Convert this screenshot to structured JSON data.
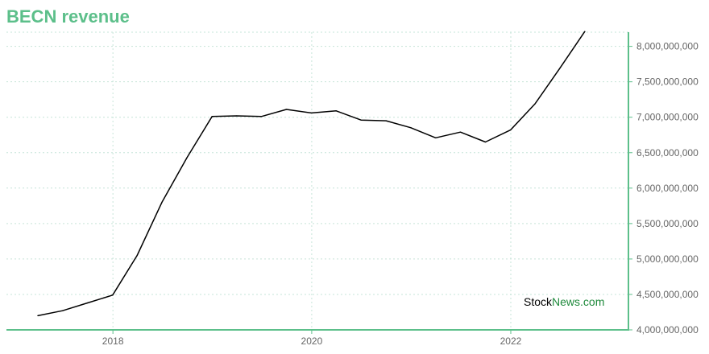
{
  "chart_data": {
    "type": "line",
    "title": "BECN revenue",
    "xlabel": "",
    "ylabel": "",
    "x_ticks": [
      "2018",
      "2020",
      "2022"
    ],
    "y_ticks": [
      "4,000,000,000",
      "4,500,000,000",
      "5,000,000,000",
      "5,500,000,000",
      "6,000,000,000",
      "6,500,000,000",
      "7,000,000,000",
      "7,500,000,000",
      "8,000,000,000"
    ],
    "xlim": [
      "2016-12-06",
      "2023-03-09"
    ],
    "ylim": [
      4000000000,
      8200000000
    ],
    "grid": true,
    "y_axis_position": "right",
    "series": [
      {
        "color": "#000000",
        "points": [
          {
            "x": "2017-03-31",
            "y": 4200000000
          },
          {
            "x": "2017-06-30",
            "y": 4270000000
          },
          {
            "x": "2017-09-30",
            "y": 4380000000
          },
          {
            "x": "2017-12-31",
            "y": 4490000000
          },
          {
            "x": "2018-03-31",
            "y": 5050000000
          },
          {
            "x": "2018-06-30",
            "y": 5800000000
          },
          {
            "x": "2018-09-30",
            "y": 6430000000
          },
          {
            "x": "2018-12-31",
            "y": 7010000000
          },
          {
            "x": "2019-03-31",
            "y": 7020000000
          },
          {
            "x": "2019-06-30",
            "y": 7010000000
          },
          {
            "x": "2019-09-30",
            "y": 7110000000
          },
          {
            "x": "2019-12-31",
            "y": 7060000000
          },
          {
            "x": "2020-03-31",
            "y": 7090000000
          },
          {
            "x": "2020-06-30",
            "y": 6960000000
          },
          {
            "x": "2020-09-30",
            "y": 6950000000
          },
          {
            "x": "2020-12-31",
            "y": 6850000000
          },
          {
            "x": "2021-03-31",
            "y": 6710000000
          },
          {
            "x": "2021-06-30",
            "y": 6790000000
          },
          {
            "x": "2021-09-30",
            "y": 6650000000
          },
          {
            "x": "2021-12-31",
            "y": 6820000000
          },
          {
            "x": "2022-03-31",
            "y": 7190000000
          },
          {
            "x": "2022-06-30",
            "y": 7690000000
          },
          {
            "x": "2022-09-30",
            "y": 8210000000
          }
        ]
      }
    ]
  },
  "watermark": {
    "part1": "Stock",
    "part2": "News",
    "part3": ".com"
  },
  "colors": {
    "title": "#5cbf8a",
    "axis": "#5cbf8a",
    "grid": "#c6e4d8",
    "watermark_dark": "#000000",
    "watermark_green": "#1f8a3c"
  }
}
